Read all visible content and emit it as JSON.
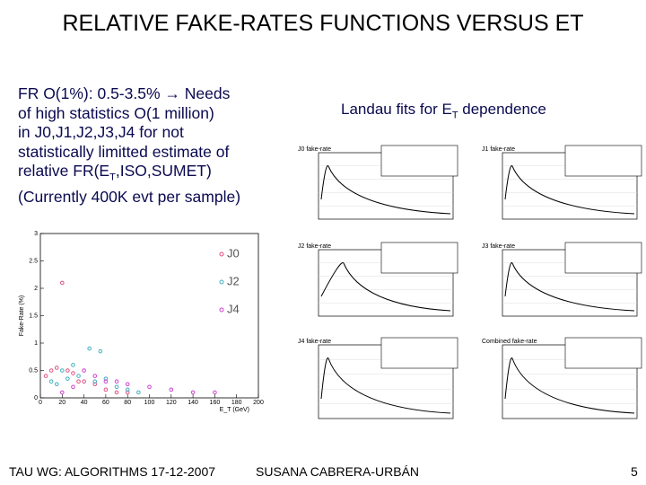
{
  "title": "RELATIVE FAKE-RATES FUNCTIONS VERSUS ET",
  "left_text": [
    [
      "FR O(1%): 0.5-3.5% → Needs"
    ],
    [
      "of high statistics O(1 million)"
    ],
    [
      "in J0,J1,J2,J3,J4 for not"
    ],
    [
      "statistically limitted estimate of"
    ],
    [
      "relative FR(E",
      "T",
      ",ISO,SUMET)"
    ],
    [
      "(Currently 400K evt per sample)"
    ]
  ],
  "right_heading": [
    "Landau fits for E",
    "T",
    " dependence"
  ],
  "chart_data": {
    "type": "scatter",
    "xlabel": "E_T (GeV)",
    "ylabel": "Fake-Rate (%)",
    "xlim": [
      0,
      200
    ],
    "xticks": [
      0,
      20,
      40,
      60,
      80,
      100,
      120,
      140,
      160,
      180,
      200
    ],
    "ylim": [
      0,
      3
    ],
    "yticks": [
      0,
      0.5,
      1,
      1.5,
      2,
      2.5,
      3
    ],
    "series": [
      {
        "name": "J0",
        "color": "#e05080",
        "x": [
          5,
          10,
          15,
          20,
          25,
          30,
          35,
          40,
          50,
          60,
          70,
          80
        ],
        "values": [
          0.4,
          0.5,
          0.55,
          2.1,
          0.5,
          0.45,
          0.3,
          0.3,
          0.25,
          0.15,
          0.1,
          0.1
        ]
      },
      {
        "name": "J2",
        "color": "#40b0c0",
        "x": [
          10,
          15,
          20,
          25,
          30,
          35,
          45,
          50,
          55,
          60,
          70,
          80,
          90
        ],
        "values": [
          0.3,
          0.25,
          0.5,
          0.35,
          0.6,
          0.4,
          0.9,
          0.3,
          0.85,
          0.35,
          0.2,
          0.15,
          0.1
        ]
      },
      {
        "name": "J4",
        "color": "#d040d0",
        "x": [
          20,
          30,
          40,
          50,
          60,
          70,
          80,
          100,
          120,
          140,
          160
        ],
        "values": [
          0.1,
          0.2,
          0.5,
          0.4,
          0.3,
          0.3,
          0.25,
          0.2,
          0.15,
          0.1,
          0.1
        ]
      }
    ]
  },
  "fit_plots": [
    "J0 fake-rate",
    "J1 fake-rate",
    "J2 fake-rate",
    "J3 fake-rate",
    "J4 fake-rate",
    "Combined fake-rate"
  ],
  "footer": {
    "left": "TAU WG: ALGORITHMS 17-12-2007",
    "center": "SUSANA CABRERA-URBÁN",
    "page": "5"
  }
}
